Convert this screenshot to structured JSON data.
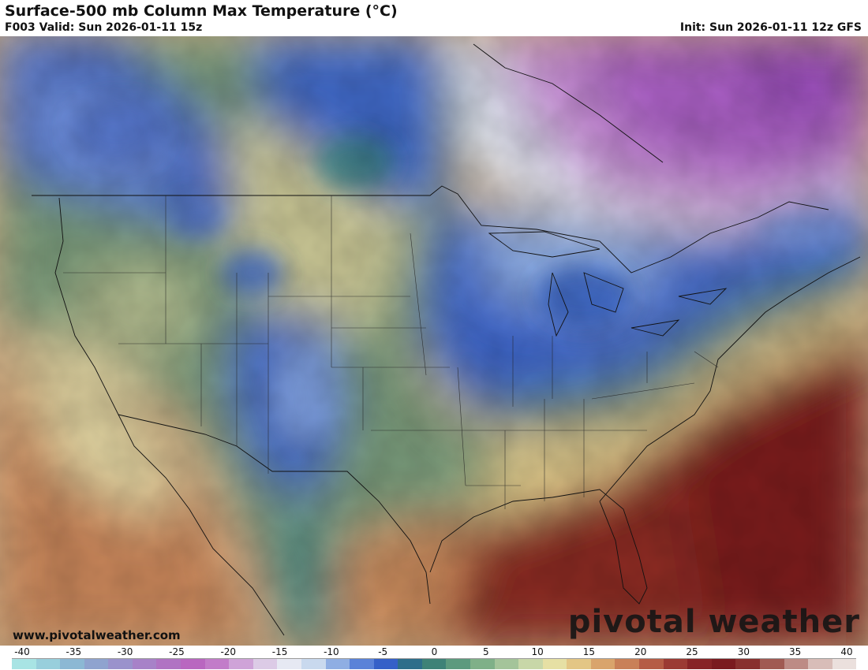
{
  "header": {
    "title": "Surface-500 mb Column Max Temperature (°C)",
    "valid": "F003 Valid: Sun 2026-01-11 15z",
    "init": "Init: Sun 2026-01-11 12z GFS"
  },
  "footer": {
    "website": "www.pivotalweather.com",
    "brand": "pivotal weather"
  },
  "legend": {
    "ticks": [
      "-40",
      "-35",
      "-30",
      "-25",
      "-20",
      "-15",
      "-10",
      "-5",
      "0",
      "5",
      "10",
      "15",
      "20",
      "25",
      "30",
      "35",
      "40"
    ],
    "colors": [
      "#a8e4e4",
      "#98cfdc",
      "#8cb8d4",
      "#8fa3cf",
      "#9a92cc",
      "#a782c8",
      "#b073c3",
      "#b967c0",
      "#c27cc9",
      "#cfa3d8",
      "#dccbe6",
      "#e6e9f3",
      "#c9d9ee",
      "#8faee3",
      "#5a82d8",
      "#3560c8",
      "#2d6e8a",
      "#3e8277",
      "#5c9a7e",
      "#7fb088",
      "#a4c49a",
      "#c8d7a8",
      "#e6e0a4",
      "#e3c685",
      "#d9a46c",
      "#c98058",
      "#b55c45",
      "#9b3a33",
      "#872426",
      "#7a1b1f",
      "#88302e",
      "#a05a52",
      "#bd8b85",
      "#d8bdb8",
      "#ebe0dd"
    ]
  },
  "map": {
    "colors": {
      "cold_purple": "#b36fc7",
      "cold_blue": "#3560c8",
      "cool_green": "#4d8a75",
      "mild_yellow": "#e3dba0",
      "warm_orange": "#d49068",
      "hot_red": "#8a2a24"
    }
  }
}
